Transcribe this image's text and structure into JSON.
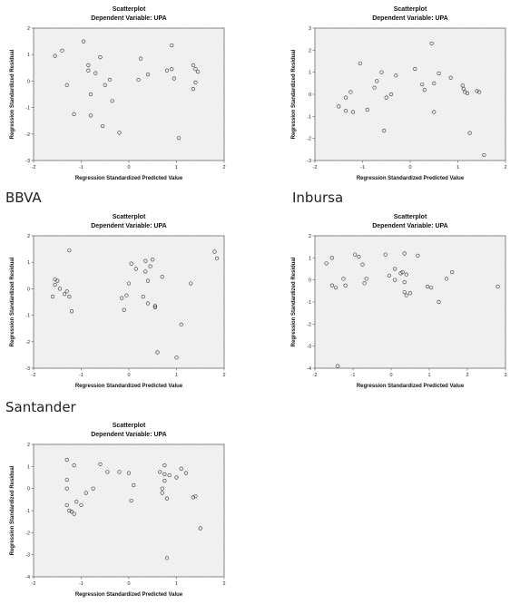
{
  "bank_labels": [
    "BBVA",
    "Inbursa",
    "Santander"
  ],
  "chart_data": [
    {
      "type": "scatter",
      "title": "Scatterplot",
      "subtitle": "Dependent Variable: UPA",
      "xlabel": "Regression Standardized Predicted Value",
      "ylabel": "Regression Standardized Residual",
      "xlim": [
        -2,
        2
      ],
      "ylim": [
        -3,
        2
      ],
      "xticks": [
        -2,
        -1,
        0,
        1,
        2
      ],
      "yticks": [
        -3,
        -2,
        -1,
        0,
        1,
        2
      ],
      "points": [
        [
          -1.55,
          0.95
        ],
        [
          -1.4,
          1.15
        ],
        [
          -1.3,
          -0.15
        ],
        [
          -1.15,
          -1.25
        ],
        [
          -0.95,
          1.5
        ],
        [
          -0.85,
          0.6
        ],
        [
          -0.85,
          0.4
        ],
        [
          -0.8,
          -0.5
        ],
        [
          -0.8,
          -1.3
        ],
        [
          -0.7,
          0.3
        ],
        [
          -0.6,
          0.9
        ],
        [
          -0.55,
          -1.7
        ],
        [
          -0.5,
          -0.15
        ],
        [
          -0.4,
          0.05
        ],
        [
          -0.35,
          -0.75
        ],
        [
          -0.2,
          -1.95
        ],
        [
          0.2,
          0.05
        ],
        [
          0.25,
          0.85
        ],
        [
          0.4,
          0.25
        ],
        [
          0.8,
          0.4
        ],
        [
          0.9,
          1.35
        ],
        [
          0.9,
          0.45
        ],
        [
          0.95,
          0.1
        ],
        [
          1.05,
          -2.15
        ],
        [
          1.35,
          0.6
        ],
        [
          1.4,
          0.45
        ],
        [
          1.4,
          -0.05
        ],
        [
          1.35,
          -0.3
        ],
        [
          1.45,
          0.35
        ]
      ]
    },
    {
      "type": "scatter",
      "title": "Scatterplot",
      "subtitle": "Dependent Variable: UPA",
      "xlabel": "Regression Standardized Predicted Value",
      "ylabel": "Regression Standardized Residual",
      "xlim": [
        -2,
        2
      ],
      "ylim": [
        -3,
        3
      ],
      "xticks": [
        -2,
        -1,
        0,
        1,
        2
      ],
      "yticks": [
        -3,
        -2,
        -1,
        0,
        1,
        2,
        3
      ],
      "points": [
        [
          -1.5,
          -0.55
        ],
        [
          -1.35,
          -0.15
        ],
        [
          -1.35,
          -0.75
        ],
        [
          -1.25,
          0.1
        ],
        [
          -1.2,
          -0.8
        ],
        [
          -1.05,
          1.4
        ],
        [
          -0.9,
          -0.7
        ],
        [
          -0.75,
          0.3
        ],
        [
          -0.7,
          0.6
        ],
        [
          -0.6,
          1.0
        ],
        [
          -0.55,
          -1.65
        ],
        [
          -0.5,
          -0.15
        ],
        [
          -0.4,
          0.0
        ],
        [
          -0.3,
          0.85
        ],
        [
          0.1,
          1.15
        ],
        [
          0.25,
          0.45
        ],
        [
          0.3,
          0.2
        ],
        [
          0.45,
          2.3
        ],
        [
          0.5,
          0.5
        ],
        [
          0.5,
          -0.8
        ],
        [
          0.6,
          0.95
        ],
        [
          0.85,
          0.75
        ],
        [
          1.1,
          0.4
        ],
        [
          1.12,
          0.25
        ],
        [
          1.15,
          0.1
        ],
        [
          1.2,
          0.05
        ],
        [
          1.25,
          -1.75
        ],
        [
          1.4,
          0.15
        ],
        [
          1.45,
          0.1
        ],
        [
          1.55,
          -2.75
        ]
      ]
    },
    {
      "type": "scatter",
      "title": "Scatterplot",
      "subtitle": "Dependent Variable: UPA",
      "xlabel": "Regression Standardized Predicted Value",
      "ylabel": "Regression Standardized Residual",
      "xlim": [
        -2,
        2
      ],
      "ylim": [
        -3,
        2
      ],
      "xticks": [
        -2,
        -1,
        0,
        1,
        2
      ],
      "yticks": [
        -3,
        -2,
        -1,
        0,
        1,
        2
      ],
      "points": [
        [
          -1.6,
          -0.3
        ],
        [
          -1.55,
          0.35
        ],
        [
          -1.55,
          0.15
        ],
        [
          -1.5,
          0.3
        ],
        [
          -1.45,
          0.0
        ],
        [
          -1.35,
          -0.2
        ],
        [
          -1.3,
          -0.1
        ],
        [
          -1.25,
          -0.3
        ],
        [
          -1.25,
          1.45
        ],
        [
          -1.2,
          -0.85
        ],
        [
          -0.15,
          -0.35
        ],
        [
          -0.1,
          -0.8
        ],
        [
          -0.05,
          -0.25
        ],
        [
          0.0,
          0.2
        ],
        [
          0.05,
          0.95
        ],
        [
          0.15,
          0.75
        ],
        [
          0.3,
          -0.3
        ],
        [
          0.35,
          0.65
        ],
        [
          0.35,
          1.05
        ],
        [
          0.4,
          -0.55
        ],
        [
          0.5,
          1.1
        ],
        [
          0.55,
          -0.65
        ],
        [
          0.55,
          -0.7
        ],
        [
          0.6,
          -2.4
        ],
        [
          0.7,
          0.45
        ],
        [
          1.0,
          -2.6
        ],
        [
          1.1,
          -1.35
        ],
        [
          1.3,
          0.2
        ],
        [
          1.8,
          1.4
        ],
        [
          1.85,
          1.15
        ],
        [
          0.45,
          0.85
        ],
        [
          0.4,
          0.3
        ]
      ]
    },
    {
      "type": "scatter",
      "title": "Scatterplot",
      "subtitle": "Dependent Variable: UPA",
      "xlabel": "Regression Standardized Predicted Value",
      "ylabel": "Regression Standardized Residual",
      "xlim": [
        -2,
        3
      ],
      "ylim": [
        -4,
        2
      ],
      "xticks": [
        -2,
        -1,
        0,
        1,
        2,
        3
      ],
      "yticks": [
        -4,
        -3,
        -2,
        -1,
        0,
        1,
        2
      ],
      "points": [
        [
          -1.7,
          0.75
        ],
        [
          -1.55,
          -0.25
        ],
        [
          -1.55,
          1.0
        ],
        [
          -1.45,
          -0.35
        ],
        [
          -1.4,
          -3.9
        ],
        [
          -1.25,
          0.05
        ],
        [
          -1.2,
          -0.25
        ],
        [
          -0.95,
          1.15
        ],
        [
          -0.85,
          1.05
        ],
        [
          -0.75,
          0.7
        ],
        [
          -0.7,
          -0.15
        ],
        [
          -0.65,
          0.05
        ],
        [
          -0.15,
          1.15
        ],
        [
          -0.05,
          0.2
        ],
        [
          0.1,
          0.5
        ],
        [
          0.1,
          0.0
        ],
        [
          0.25,
          0.3
        ],
        [
          0.3,
          0.35
        ],
        [
          0.35,
          -0.1
        ],
        [
          0.35,
          1.2
        ],
        [
          0.4,
          0.25
        ],
        [
          0.35,
          -0.55
        ],
        [
          0.4,
          -0.7
        ],
        [
          0.5,
          -0.6
        ],
        [
          0.7,
          1.1
        ],
        [
          0.95,
          -0.3
        ],
        [
          1.05,
          -0.35
        ],
        [
          1.25,
          -1.0
        ],
        [
          1.45,
          0.05
        ],
        [
          1.6,
          0.35
        ],
        [
          2.8,
          -0.3
        ]
      ]
    },
    {
      "type": "scatter",
      "title": "Scatterplot",
      "subtitle": "Dependent Variable: UPA",
      "xlabel": "Regression Standardized Predicted Value",
      "ylabel": "Regression Standardized Residual",
      "xlim": [
        -2,
        2
      ],
      "ylim": [
        -4,
        2
      ],
      "xticks": [
        -2,
        -1,
        0,
        1,
        2
      ],
      "yticks": [
        -4,
        -3,
        -2,
        -1,
        0,
        1,
        2
      ],
      "points": [
        [
          -1.3,
          1.3
        ],
        [
          -1.3,
          0.4
        ],
        [
          -1.3,
          0.0
        ],
        [
          -1.3,
          -0.75
        ],
        [
          -1.25,
          -1.0
        ],
        [
          -1.2,
          -1.05
        ],
        [
          -1.15,
          -1.15
        ],
        [
          -1.15,
          1.05
        ],
        [
          -1.1,
          -0.6
        ],
        [
          -1.0,
          -0.75
        ],
        [
          -0.9,
          -0.2
        ],
        [
          -0.75,
          0.0
        ],
        [
          -0.6,
          1.1
        ],
        [
          -0.45,
          0.75
        ],
        [
          -0.2,
          0.75
        ],
        [
          0.0,
          0.7
        ],
        [
          0.05,
          -0.55
        ],
        [
          0.1,
          0.15
        ],
        [
          0.65,
          0.75
        ],
        [
          0.7,
          0.0
        ],
        [
          0.7,
          -0.2
        ],
        [
          0.75,
          0.65
        ],
        [
          0.75,
          0.35
        ],
        [
          0.75,
          1.05
        ],
        [
          0.8,
          -3.15
        ],
        [
          0.8,
          -0.45
        ],
        [
          0.85,
          0.6
        ],
        [
          1.0,
          0.5
        ],
        [
          1.1,
          0.9
        ],
        [
          1.2,
          0.7
        ],
        [
          1.35,
          -0.4
        ],
        [
          1.4,
          -0.35
        ],
        [
          1.5,
          -1.8
        ]
      ]
    }
  ]
}
